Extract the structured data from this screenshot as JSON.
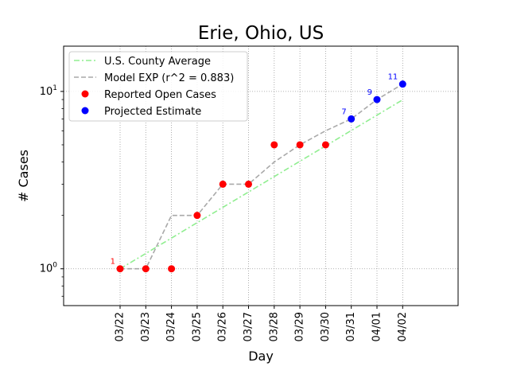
{
  "chart_data": {
    "type": "line",
    "title": "Erie, Ohio, US",
    "xlabel": "Day",
    "ylabel": "# Cases",
    "yscale": "log",
    "ylim": [
      0.62,
      18
    ],
    "grid": true,
    "legend_position": "top-left",
    "categories": [
      "03/22",
      "03/23",
      "03/24",
      "03/25",
      "03/26",
      "03/27",
      "03/28",
      "03/29",
      "03/30",
      "03/31",
      "04/01",
      "04/02"
    ],
    "y_ticks": [
      {
        "value": 1,
        "label": "10^0"
      },
      {
        "value": 10,
        "label": "10^1"
      }
    ],
    "series": [
      {
        "name": "U.S. County Average",
        "style": "dash-dot",
        "color": "#90ee90",
        "values": [
          1.0,
          1.22,
          1.49,
          1.82,
          2.22,
          2.71,
          3.31,
          4.04,
          4.93,
          6.02,
          7.35,
          8.97
        ]
      },
      {
        "name": "Model EXP (r^2 = 0.883)",
        "style": "dashed",
        "color": "#a9a9a9",
        "values": [
          1,
          1,
          2,
          2,
          3,
          3,
          4,
          5,
          6,
          7,
          9,
          11
        ]
      },
      {
        "name": "Reported Open Cases",
        "style": "markers",
        "color": "#ff0000",
        "values": [
          1,
          1,
          1,
          2,
          3,
          3,
          5,
          5,
          5,
          null,
          null,
          null
        ]
      },
      {
        "name": "Projected Estimate",
        "style": "markers",
        "color": "#0000ff",
        "values": [
          null,
          null,
          null,
          null,
          null,
          null,
          null,
          null,
          null,
          7,
          9,
          11
        ]
      }
    ],
    "annotations": [
      {
        "x": "03/22",
        "y": 1,
        "text": "1",
        "color": "#ff0000"
      },
      {
        "x": "03/31",
        "y": 7,
        "text": "7",
        "color": "#0000ff"
      },
      {
        "x": "04/01",
        "y": 9,
        "text": "9",
        "color": "#0000ff"
      },
      {
        "x": "04/02",
        "y": 11,
        "text": "11",
        "color": "#0000ff"
      }
    ]
  }
}
